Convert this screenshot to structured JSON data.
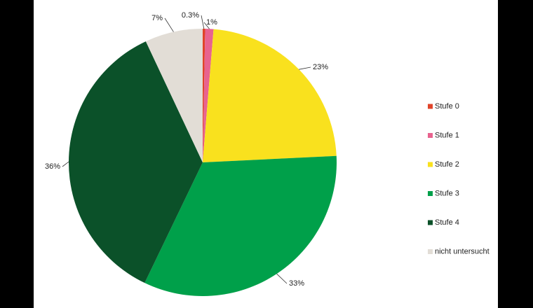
{
  "chart_data": {
    "type": "pie",
    "categories": [
      "Stufe 0",
      "Stufe 1",
      "Stufe 2",
      "Stufe 3",
      "Stufe 4",
      "nicht untersucht"
    ],
    "values": [
      0.3,
      1,
      23,
      33,
      36,
      7
    ],
    "value_labels": [
      "0.3%",
      "1%",
      "23%",
      "33%",
      "36%",
      "7%"
    ],
    "colors": [
      "#e0442a",
      "#e8638f",
      "#f9e11e",
      "#00a04a",
      "#0b5129",
      "#e2ddd6"
    ],
    "legend": "right"
  }
}
